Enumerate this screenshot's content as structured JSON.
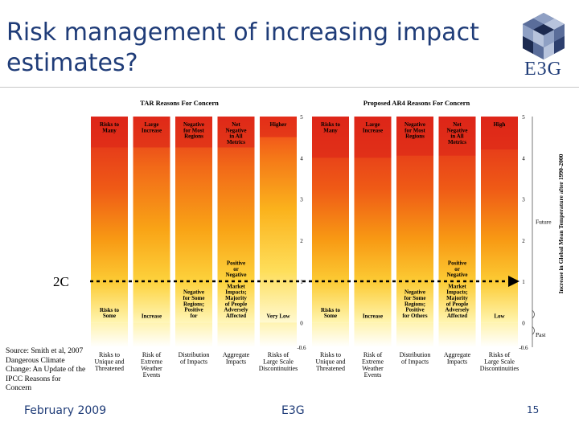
{
  "slide": {
    "title": "Risk management of increasing impact estimates?",
    "logo_text": "E3G",
    "source": "Source: Smith et al, 2007 Dangerous Climate Change: An Update of the IPCC Reasons for Concern",
    "footer_date": "February 2009",
    "footer_org": "E3G",
    "page_number": "15"
  },
  "chart_data": {
    "type": "heatmap",
    "left_panel_title": "TAR Reasons For Concern",
    "right_panel_title": "Proposed AR4 Reasons For Concern",
    "ylim": [
      -0.6,
      5
    ],
    "ticks": [
      "5",
      "4",
      "3",
      "2",
      "1",
      "0",
      "-0.6"
    ],
    "tick_values": [
      5,
      4,
      3,
      2,
      1,
      0,
      -0.6
    ],
    "ylabel": "Increase in Global Mean Temperature after 1990-2000",
    "future_label": "Future",
    "past_label": "Past",
    "threshold_label": "2C",
    "threshold_value": 1.0,
    "categories": [
      "Risks to Unique and Threatened",
      "Risk of Extreme Weather Events",
      "Distribution of Impacts",
      "Aggregate Impacts",
      "Risks of Large Scale Discontinuities"
    ],
    "tar_columns": [
      {
        "top": "Risks to Many",
        "bottom": "Risks to Some",
        "red_from": 2.0,
        "gradient": "red"
      },
      {
        "top": "Large Increase",
        "bottom": "Increase",
        "red_from": 2.0,
        "gradient": "orange"
      },
      {
        "top": "Negative for Most Regions",
        "bottom": "Negative for Some Regions; Positive for",
        "red_from": 2.0,
        "gradient": "orange"
      },
      {
        "top": "Net Negative in All Metrics",
        "mid": "Positive or Negative",
        "bottom": "Market Impacts; Majority of People Adversely Affected",
        "red_from": 2.0,
        "gradient": "orange"
      },
      {
        "top": "Higher",
        "bottom": "Very Low",
        "red_from": 3.0,
        "gradient": "yellow"
      }
    ],
    "ar4_columns": [
      {
        "top": "Risks to Many",
        "bottom": "Risks to Some",
        "red_from": 1.0,
        "gradient": "red"
      },
      {
        "top": "Large Increase",
        "bottom": "Increase",
        "red_from": 1.0,
        "gradient": "red"
      },
      {
        "top": "Negative for Most Regions",
        "bottom": "Negative for Some Regions; Positive for Others",
        "red_from": 1.2,
        "gradient": "red"
      },
      {
        "top": "Net Negative in All Metrics",
        "mid": "Positive or Negative",
        "bottom": "Market Impacts; Majority of People Adversely Affected",
        "red_from": 1.2,
        "gradient": "red"
      },
      {
        "top": "High",
        "bottom": "Low",
        "red_from": 1.8,
        "gradient": "red"
      }
    ]
  }
}
